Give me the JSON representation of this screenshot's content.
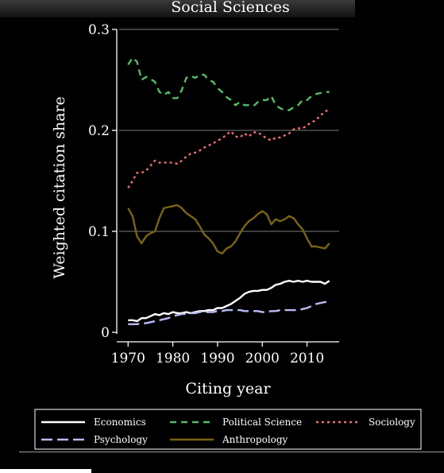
{
  "chart_data": {
    "type": "line",
    "title": "Social Sciences",
    "xlabel": "Citing year",
    "ylabel": "Weighted citation share",
    "xlim": [
      1968,
      2017
    ],
    "ylim": [
      0,
      0.3
    ],
    "xticks": [
      1970,
      1980,
      1990,
      2000,
      2010
    ],
    "xtick_labels": [
      "1970",
      "1980",
      "1990",
      "2000",
      "2010"
    ],
    "yticks": [
      0,
      0.1,
      0.2,
      0.3
    ],
    "ytick_labels": [
      "0",
      "0.1",
      "0.2",
      "0.3"
    ],
    "grid": "horizontal",
    "legend_position": "bottom",
    "x": [
      1970,
      1971,
      1972,
      1973,
      1974,
      1975,
      1976,
      1977,
      1978,
      1979,
      1980,
      1981,
      1982,
      1983,
      1984,
      1985,
      1986,
      1987,
      1988,
      1989,
      1990,
      1991,
      1992,
      1993,
      1994,
      1995,
      1996,
      1997,
      1998,
      1999,
      2000,
      2001,
      2002,
      2003,
      2004,
      2005,
      2006,
      2007,
      2008,
      2009,
      2010,
      2011,
      2012,
      2013,
      2014,
      2015
    ],
    "series": [
      {
        "name": "Economics",
        "color": "#ffffff",
        "dash": "solid",
        "values": [
          0.012,
          0.012,
          0.011,
          0.014,
          0.014,
          0.016,
          0.018,
          0.017,
          0.019,
          0.018,
          0.02,
          0.019,
          0.019,
          0.02,
          0.019,
          0.02,
          0.021,
          0.021,
          0.022,
          0.022,
          0.024,
          0.024,
          0.026,
          0.028,
          0.031,
          0.034,
          0.038,
          0.04,
          0.041,
          0.041,
          0.042,
          0.042,
          0.044,
          0.047,
          0.048,
          0.05,
          0.051,
          0.05,
          0.051,
          0.05,
          0.051,
          0.05,
          0.05,
          0.05,
          0.048,
          0.051
        ]
      },
      {
        "name": "Political Science",
        "color": "#55bb66",
        "dash": "8,6",
        "values": [
          0.265,
          0.272,
          0.268,
          0.25,
          0.253,
          0.251,
          0.248,
          0.238,
          0.235,
          0.238,
          0.232,
          0.232,
          0.24,
          0.252,
          0.254,
          0.252,
          0.255,
          0.255,
          0.25,
          0.248,
          0.242,
          0.238,
          0.233,
          0.23,
          0.225,
          0.228,
          0.225,
          0.225,
          0.224,
          0.228,
          0.23,
          0.23,
          0.234,
          0.225,
          0.222,
          0.22,
          0.22,
          0.223,
          0.225,
          0.23,
          0.23,
          0.234,
          0.236,
          0.237,
          0.238,
          0.238
        ]
      },
      {
        "name": "Sociology",
        "color": "#ee6e6e",
        "dash": "3,4",
        "values": [
          0.143,
          0.15,
          0.158,
          0.158,
          0.16,
          0.165,
          0.17,
          0.168,
          0.168,
          0.168,
          0.168,
          0.167,
          0.17,
          0.174,
          0.177,
          0.178,
          0.18,
          0.183,
          0.185,
          0.187,
          0.19,
          0.192,
          0.196,
          0.199,
          0.194,
          0.193,
          0.197,
          0.194,
          0.198,
          0.198,
          0.195,
          0.192,
          0.19,
          0.193,
          0.193,
          0.195,
          0.197,
          0.201,
          0.202,
          0.202,
          0.205,
          0.208,
          0.21,
          0.215,
          0.218,
          0.222
        ]
      },
      {
        "name": "Psychology",
        "color": "#b8bcf2",
        "dash": "14,6",
        "values": [
          0.008,
          0.008,
          0.008,
          0.009,
          0.009,
          0.01,
          0.011,
          0.012,
          0.013,
          0.014,
          0.016,
          0.017,
          0.018,
          0.018,
          0.019,
          0.019,
          0.02,
          0.02,
          0.02,
          0.02,
          0.021,
          0.021,
          0.022,
          0.022,
          0.022,
          0.022,
          0.021,
          0.021,
          0.021,
          0.021,
          0.02,
          0.02,
          0.021,
          0.021,
          0.022,
          0.022,
          0.022,
          0.022,
          0.022,
          0.023,
          0.024,
          0.026,
          0.028,
          0.029,
          0.03,
          0.03
        ]
      },
      {
        "name": "Anthropology",
        "color": "#7a6510",
        "dash": "solid",
        "values": [
          0.123,
          0.115,
          0.095,
          0.088,
          0.095,
          0.098,
          0.1,
          0.113,
          0.123,
          0.124,
          0.125,
          0.126,
          0.123,
          0.118,
          0.115,
          0.112,
          0.105,
          0.097,
          0.093,
          0.088,
          0.08,
          0.078,
          0.083,
          0.085,
          0.09,
          0.098,
          0.105,
          0.11,
          0.113,
          0.117,
          0.12,
          0.117,
          0.107,
          0.112,
          0.11,
          0.112,
          0.115,
          0.113,
          0.107,
          0.102,
          0.093,
          0.085,
          0.085,
          0.084,
          0.083,
          0.088
        ]
      }
    ]
  }
}
